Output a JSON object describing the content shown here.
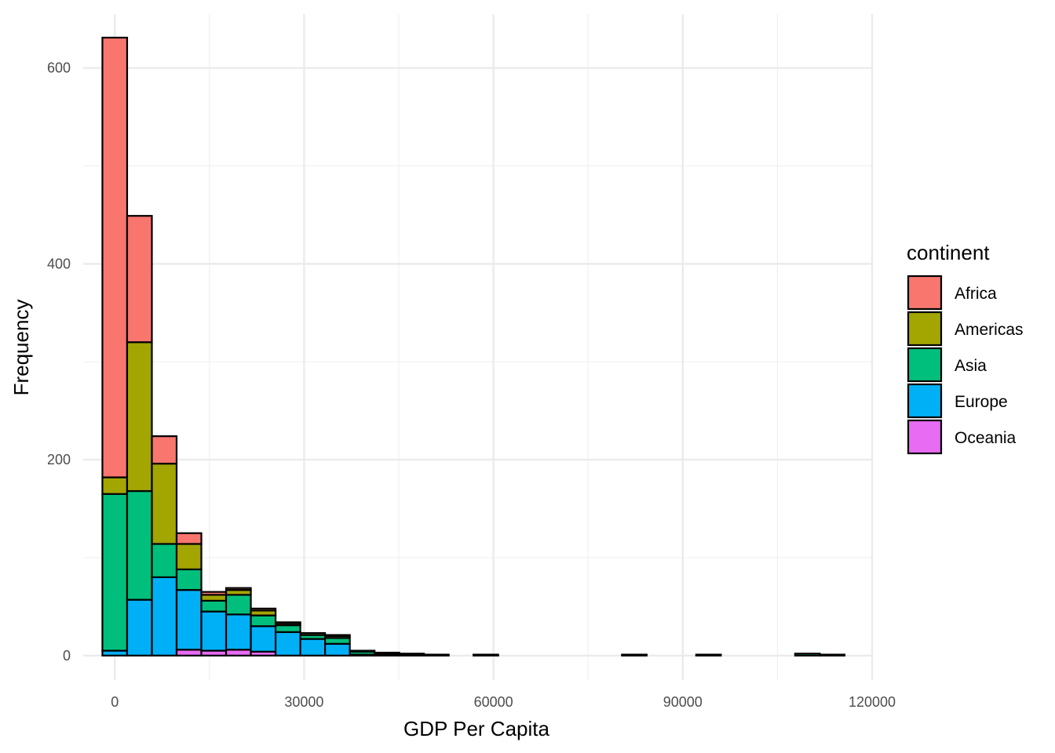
{
  "chart_data": {
    "type": "bar",
    "subtype": "stacked-histogram",
    "title": "",
    "xlabel": "GDP Per Capita",
    "ylabel": "Frequency",
    "xlim": [
      -5000,
      120000
    ],
    "ylim": [
      -25,
      655
    ],
    "x_ticks": [
      0,
      30000,
      60000,
      90000,
      120000
    ],
    "y_ticks": [
      0,
      200,
      400,
      600
    ],
    "grid": true,
    "legend_title": "continent",
    "legend_position": "right",
    "bin_width": 3920,
    "bins": [
      {
        "x0": -1959,
        "x1": 1961,
        "counts": {
          "Oceania": 0,
          "Europe": 5,
          "Asia": 160,
          "Americas": 17,
          "Africa": 449
        }
      },
      {
        "x0": 1961,
        "x1": 5881,
        "counts": {
          "Oceania": 0,
          "Europe": 57,
          "Asia": 111,
          "Americas": 152,
          "Africa": 129
        }
      },
      {
        "x0": 5881,
        "x1": 9801,
        "counts": {
          "Oceania": 0,
          "Europe": 80,
          "Asia": 34,
          "Americas": 82,
          "Africa": 28
        }
      },
      {
        "x0": 9801,
        "x1": 13721,
        "counts": {
          "Oceania": 6,
          "Europe": 61,
          "Asia": 21,
          "Americas": 26,
          "Africa": 11
        }
      },
      {
        "x0": 13721,
        "x1": 17641,
        "counts": {
          "Oceania": 5,
          "Europe": 40,
          "Asia": 11,
          "Americas": 6,
          "Africa": 3
        }
      },
      {
        "x0": 17641,
        "x1": 21561,
        "counts": {
          "Oceania": 6,
          "Europe": 36,
          "Asia": 20,
          "Americas": 5,
          "Africa": 2
        }
      },
      {
        "x0": 21561,
        "x1": 25481,
        "counts": {
          "Oceania": 4,
          "Europe": 26,
          "Asia": 11,
          "Americas": 5,
          "Africa": 2
        }
      },
      {
        "x0": 25481,
        "x1": 29401,
        "counts": {
          "Oceania": 0,
          "Europe": 24,
          "Asia": 7,
          "Americas": 2,
          "Africa": 1
        }
      },
      {
        "x0": 29401,
        "x1": 33321,
        "counts": {
          "Oceania": 0,
          "Europe": 17,
          "Asia": 4,
          "Americas": 2,
          "Africa": 0
        }
      },
      {
        "x0": 33321,
        "x1": 37241,
        "counts": {
          "Oceania": 0,
          "Europe": 12,
          "Asia": 6,
          "Americas": 2,
          "Africa": 1
        }
      },
      {
        "x0": 37241,
        "x1": 41161,
        "counts": {
          "Oceania": 0,
          "Europe": 1,
          "Asia": 3,
          "Americas": 1,
          "Africa": 0
        }
      },
      {
        "x0": 41161,
        "x1": 45081,
        "counts": {
          "Oceania": 0,
          "Europe": 1,
          "Asia": 1,
          "Americas": 1,
          "Africa": 0
        }
      },
      {
        "x0": 45081,
        "x1": 49001,
        "counts": {
          "Oceania": 0,
          "Europe": 1,
          "Asia": 1,
          "Americas": 0,
          "Africa": 0
        }
      },
      {
        "x0": 49001,
        "x1": 52921,
        "counts": {
          "Oceania": 0,
          "Europe": 1,
          "Asia": 0,
          "Americas": 0,
          "Africa": 0
        }
      },
      {
        "x0": 52921,
        "x1": 56841,
        "counts": {
          "Oceania": 0,
          "Europe": 0,
          "Asia": 0,
          "Americas": 0,
          "Africa": 0
        }
      },
      {
        "x0": 56841,
        "x1": 60761,
        "counts": {
          "Oceania": 0,
          "Europe": 0,
          "Asia": 1,
          "Americas": 0,
          "Africa": 0
        }
      },
      {
        "x0": 60761,
        "x1": 64681,
        "counts": {
          "Oceania": 0,
          "Europe": 0,
          "Asia": 0,
          "Americas": 0,
          "Africa": 0
        }
      },
      {
        "x0": 64681,
        "x1": 68601,
        "counts": {
          "Oceania": 0,
          "Europe": 0,
          "Asia": 0,
          "Americas": 0,
          "Africa": 0
        }
      },
      {
        "x0": 68601,
        "x1": 72521,
        "counts": {
          "Oceania": 0,
          "Europe": 0,
          "Asia": 0,
          "Americas": 0,
          "Africa": 0
        }
      },
      {
        "x0": 72521,
        "x1": 76441,
        "counts": {
          "Oceania": 0,
          "Europe": 0,
          "Asia": 0,
          "Americas": 0,
          "Africa": 0
        }
      },
      {
        "x0": 76441,
        "x1": 80361,
        "counts": {
          "Oceania": 0,
          "Europe": 0,
          "Asia": 0,
          "Americas": 0,
          "Africa": 0
        }
      },
      {
        "x0": 80361,
        "x1": 84281,
        "counts": {
          "Oceania": 0,
          "Europe": 0,
          "Asia": 1,
          "Americas": 0,
          "Africa": 0
        }
      },
      {
        "x0": 84281,
        "x1": 88201,
        "counts": {
          "Oceania": 0,
          "Europe": 0,
          "Asia": 0,
          "Americas": 0,
          "Africa": 0
        }
      },
      {
        "x0": 88201,
        "x1": 92121,
        "counts": {
          "Oceania": 0,
          "Europe": 0,
          "Asia": 0,
          "Americas": 0,
          "Africa": 0
        }
      },
      {
        "x0": 92121,
        "x1": 96041,
        "counts": {
          "Oceania": 0,
          "Europe": 0,
          "Asia": 1,
          "Americas": 0,
          "Africa": 0
        }
      },
      {
        "x0": 96041,
        "x1": 99961,
        "counts": {
          "Oceania": 0,
          "Europe": 0,
          "Asia": 0,
          "Americas": 0,
          "Africa": 0
        }
      },
      {
        "x0": 99961,
        "x1": 103881,
        "counts": {
          "Oceania": 0,
          "Europe": 0,
          "Asia": 0,
          "Americas": 0,
          "Africa": 0
        }
      },
      {
        "x0": 103881,
        "x1": 107801,
        "counts": {
          "Oceania": 0,
          "Europe": 0,
          "Asia": 0,
          "Americas": 0,
          "Africa": 0
        }
      },
      {
        "x0": 107801,
        "x1": 111721,
        "counts": {
          "Oceania": 0,
          "Europe": 0,
          "Asia": 2,
          "Americas": 0,
          "Africa": 0
        }
      },
      {
        "x0": 111721,
        "x1": 115641,
        "counts": {
          "Oceania": 0,
          "Europe": 0,
          "Asia": 1,
          "Americas": 0,
          "Africa": 0
        }
      }
    ],
    "series": [
      {
        "name": "Africa",
        "color": "#F8766D"
      },
      {
        "name": "Americas",
        "color": "#A3A500"
      },
      {
        "name": "Asia",
        "color": "#00BF7D"
      },
      {
        "name": "Europe",
        "color": "#00B0F6"
      },
      {
        "name": "Oceania",
        "color": "#E76BF3"
      }
    ],
    "stack_order_bottom_to_top": [
      "Oceania",
      "Europe",
      "Asia",
      "Americas",
      "Africa"
    ]
  }
}
